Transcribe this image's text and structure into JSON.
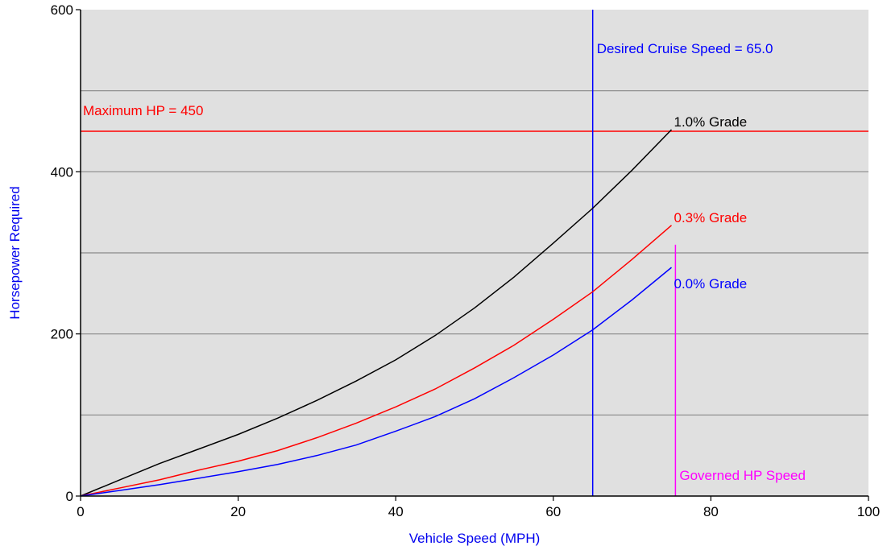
{
  "chart_data": {
    "type": "line",
    "xlabel": "Vehicle Speed (MPH)",
    "ylabel": "Horsepower Required",
    "xlim": [
      0,
      100
    ],
    "ylim": [
      0,
      600
    ],
    "x_ticks": [
      0,
      20,
      40,
      60,
      80,
      100
    ],
    "y_ticks": [
      0,
      200,
      400,
      600
    ],
    "grid": "horizontal",
    "grid_values": [
      100,
      200,
      300,
      400,
      500
    ],
    "colors": {
      "background": "#e0e0e0",
      "grid": "#8a8a8a",
      "xlabel": "#0000ee",
      "ylabel": "#0000ee"
    },
    "series": [
      {
        "name": "1.0% Grade",
        "color": "#000000",
        "x": [
          0,
          5,
          10,
          15,
          20,
          25,
          30,
          35,
          40,
          45,
          50,
          55,
          60,
          65,
          70,
          75
        ],
        "y": [
          0,
          20,
          40,
          58,
          76,
          96,
          118,
          142,
          168,
          198,
          232,
          270,
          312,
          355,
          402,
          452
        ]
      },
      {
        "name": "0.3% Grade",
        "color": "#ff0000",
        "x": [
          0,
          5,
          10,
          15,
          20,
          25,
          30,
          35,
          40,
          45,
          50,
          55,
          60,
          65,
          70,
          75
        ],
        "y": [
          0,
          10,
          20,
          32,
          43,
          56,
          72,
          90,
          110,
          132,
          158,
          186,
          218,
          252,
          292,
          334
        ]
      },
      {
        "name": "0.0% Grade",
        "color": "#0000ff",
        "x": [
          0,
          5,
          10,
          15,
          20,
          25,
          30,
          35,
          40,
          45,
          50,
          55,
          60,
          65,
          70,
          75
        ],
        "y": [
          0,
          7,
          14,
          22,
          30,
          39,
          50,
          63,
          80,
          98,
          120,
          146,
          174,
          205,
          242,
          282
        ]
      }
    ],
    "reference_lines": [
      {
        "orientation": "horizontal",
        "value": 450,
        "color": "#ff0000",
        "label": "Maximum HP = 450"
      },
      {
        "orientation": "vertical",
        "value": 65,
        "color": "#0000ff",
        "label": "Desired Cruise Speed = 65.0"
      },
      {
        "orientation": "vertical",
        "value": 75.5,
        "y_end": 310,
        "color": "#ff00ff",
        "label": "Governed HP Speed"
      }
    ]
  }
}
